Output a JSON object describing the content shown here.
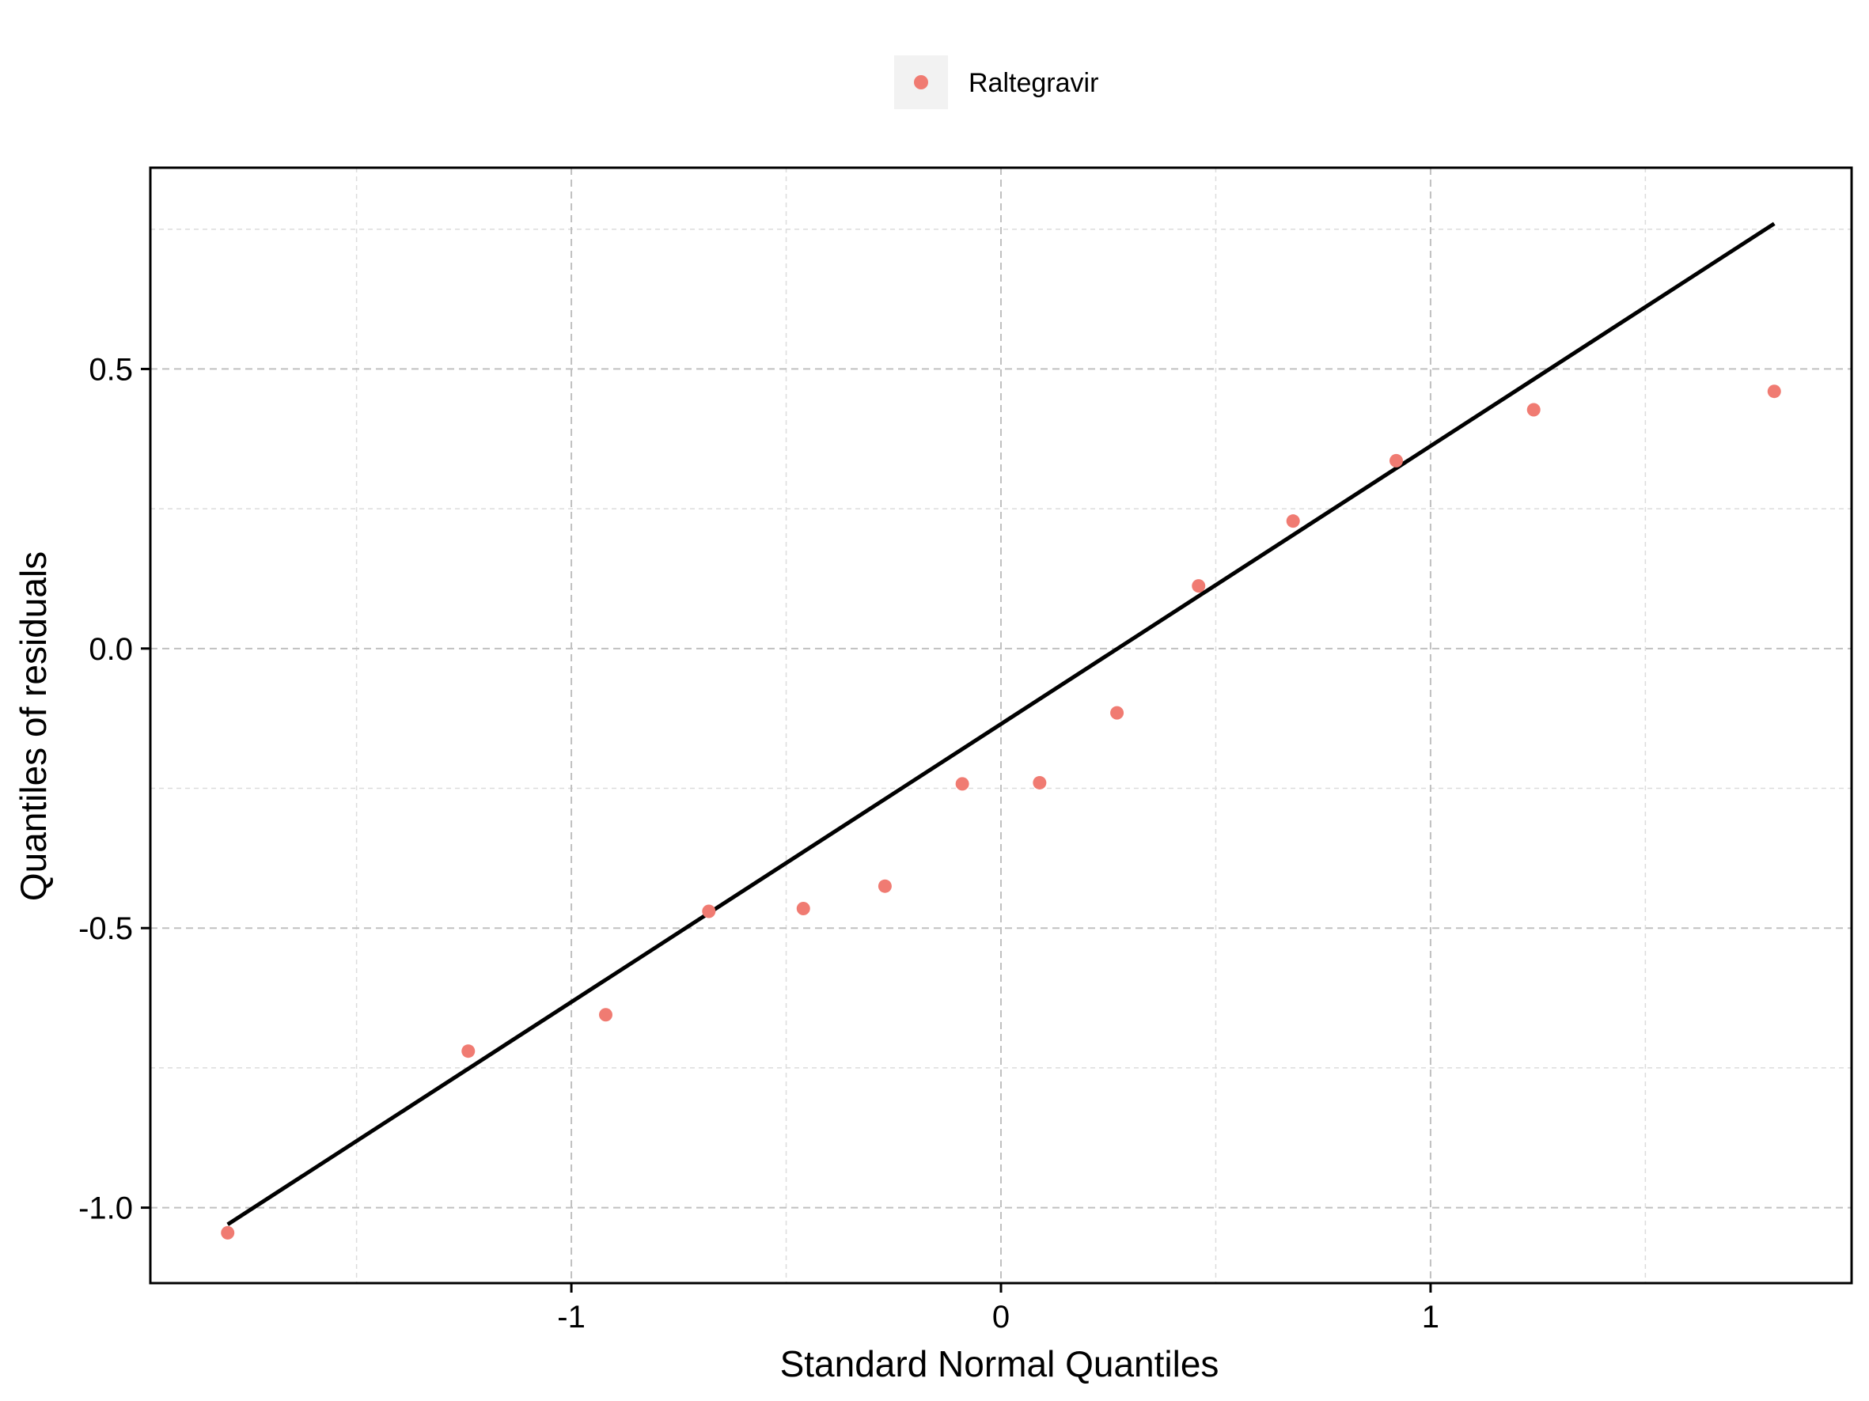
{
  "chart_data": {
    "type": "scatter",
    "title": "",
    "xlabel": "Standard Normal Quantiles",
    "ylabel": "Quantiles of residuals",
    "xlim": [
      -1.98,
      1.98
    ],
    "ylim": [
      -1.135,
      0.86
    ],
    "x_ticks": [
      -1,
      0,
      1
    ],
    "x_tick_labels": [
      "-1",
      "0",
      "1"
    ],
    "y_ticks": [
      -1.0,
      -0.5,
      0.0,
      0.5
    ],
    "y_tick_labels": [
      "-1.0",
      "-0.5",
      "0.0",
      "0.5"
    ],
    "grid": true,
    "legend": {
      "position": "top-center"
    },
    "series": [
      {
        "name": "Raltegravir",
        "color": "#f07b72",
        "x": [
          -1.8,
          -1.24,
          -0.92,
          -0.68,
          -0.46,
          -0.27,
          -0.09,
          0.09,
          0.27,
          0.46,
          0.68,
          0.92,
          1.24,
          1.8
        ],
        "y": [
          -1.045,
          -0.72,
          -0.655,
          -0.47,
          -0.465,
          -0.425,
          -0.242,
          -0.24,
          -0.115,
          0.112,
          0.228,
          0.336,
          0.427,
          0.46
        ]
      }
    ],
    "reference_line": {
      "color": "#000000",
      "x": [
        -1.8,
        1.8
      ],
      "y": [
        -1.03,
        0.76
      ]
    }
  }
}
